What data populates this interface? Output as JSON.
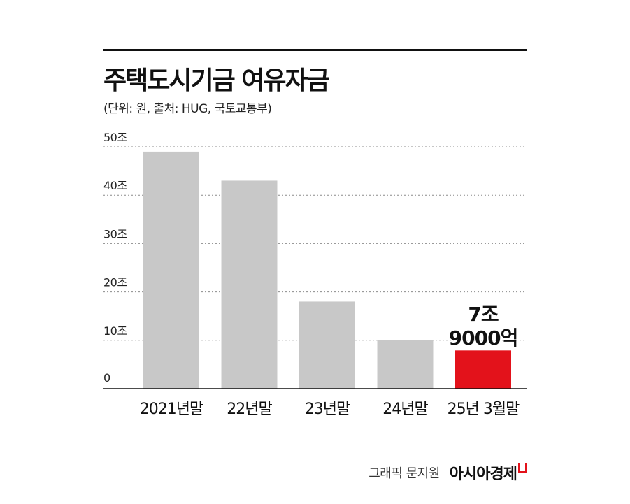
{
  "title": "주택도시기금 여유자금",
  "subtitle": "(단위: 원, 출처: HUG, 국토교통부)",
  "credit": "그래픽 문지원",
  "brand": "아시아경제",
  "colors": {
    "bar": "#c8c8c8",
    "highlight": "#e3121b",
    "grid": "#8c8c8c",
    "text": "#111111"
  },
  "chart_data": {
    "type": "bar",
    "categories": [
      "2021년말",
      "22년말",
      "23년말",
      "24년말",
      "25년 3월말"
    ],
    "values": [
      49,
      43,
      18,
      10,
      7.9
    ],
    "highlight_index": 4,
    "annotation": [
      "7조",
      "9000억"
    ],
    "yticks": [
      "0",
      "10조",
      "20조",
      "30조",
      "40조",
      "50조"
    ],
    "ylim": [
      0,
      50
    ],
    "grid": true,
    "xlabel": "",
    "ylabel": ""
  }
}
